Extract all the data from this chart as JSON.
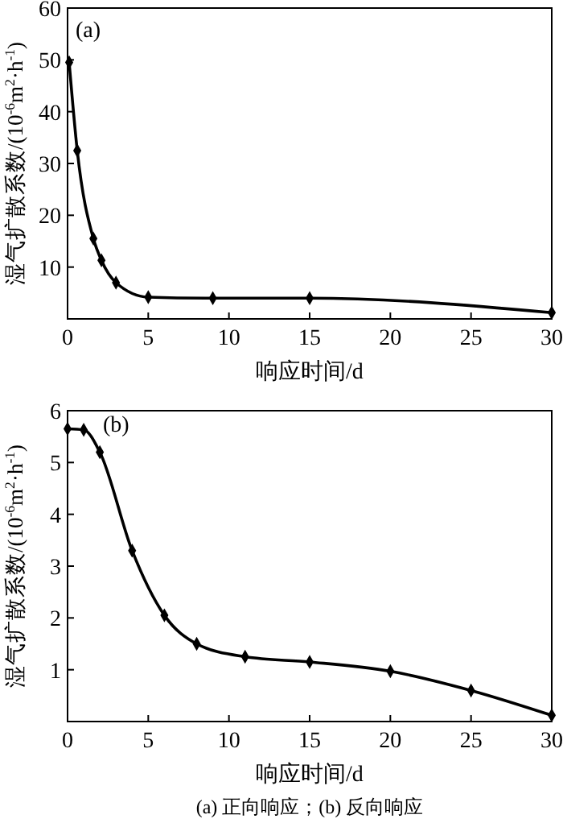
{
  "chart_data": [
    {
      "type": "line",
      "annotations": [
        "(a)"
      ],
      "xlabel": "响应时间/d",
      "ylabel": "湿气扩散系数/(10$^{-6}$m$^{2}$·h$^{-1}$)",
      "xlim": [
        0,
        30
      ],
      "ylim": [
        0,
        60
      ],
      "xticks": [
        0,
        5,
        10,
        15,
        20,
        25,
        30
      ],
      "yticks": [
        10,
        20,
        30,
        40,
        50,
        60
      ],
      "marker": "diamond",
      "line_style": "solid",
      "color": "#000000",
      "x": [
        0.1,
        0.6,
        1.6,
        2.1,
        3,
        5,
        9,
        15,
        30
      ],
      "values": [
        49.5,
        32.5,
        15.5,
        11.3,
        7,
        4.2,
        4,
        4,
        1.2
      ]
    },
    {
      "type": "line",
      "annotations": [
        "(b)",
        "(a) 正向响应；(b) 反向响应"
      ],
      "xlabel": "响应时间/d",
      "ylabel": "湿气扩散系数/(10$^{-6}$m$^{2}$·h$^{-1}$)",
      "xlim": [
        0,
        30
      ],
      "ylim": [
        0,
        6
      ],
      "xticks": [
        0,
        5,
        10,
        15,
        20,
        25,
        30
      ],
      "yticks": [
        1,
        2,
        3,
        4,
        5,
        6
      ],
      "marker": "diamond",
      "line_style": "solid",
      "color": "#000000",
      "x": [
        0,
        1,
        2,
        4,
        6,
        8,
        11,
        15,
        20,
        25,
        30
      ],
      "values": [
        5.65,
        5.63,
        5.2,
        3.3,
        2.05,
        1.5,
        1.25,
        1.15,
        0.97,
        0.6,
        0.12
      ]
    }
  ]
}
